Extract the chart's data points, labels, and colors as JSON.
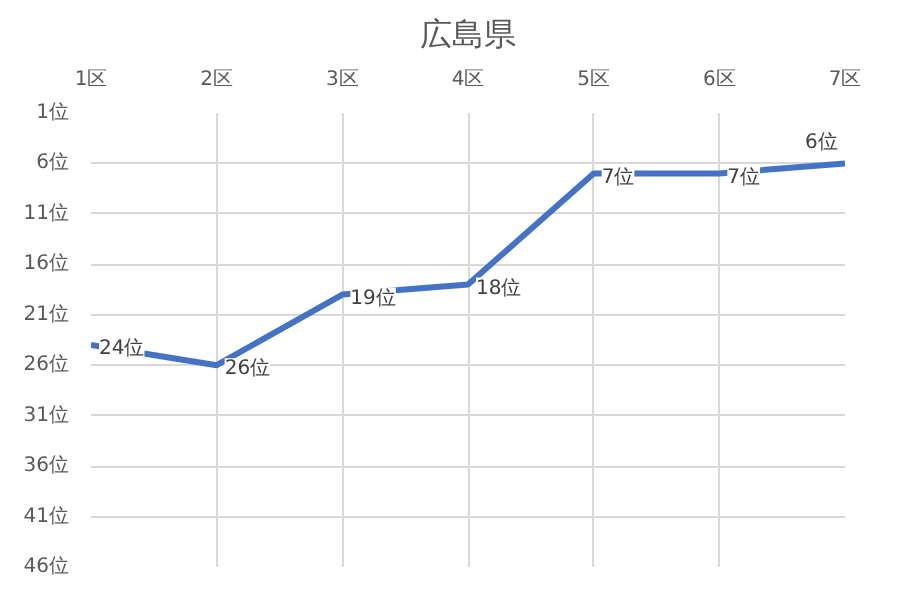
{
  "chart_data": {
    "type": "line",
    "title": "広島県",
    "categories": [
      "1区",
      "2区",
      "3区",
      "4区",
      "5区",
      "6区",
      "7区"
    ],
    "series": [
      {
        "color": "#4472c4",
        "values": [
          24,
          26,
          19,
          18,
          7,
          7,
          6
        ],
        "value_labels": [
          "24位",
          "26位",
          "19位",
          "18位",
          "7位",
          "7位",
          "6位"
        ]
      }
    ],
    "ylim": [
      46,
      1
    ],
    "yticks": [
      {
        "value": 1,
        "label": "1位"
      },
      {
        "value": 6,
        "label": "6位"
      },
      {
        "value": 11,
        "label": "11位"
      },
      {
        "value": 16,
        "label": "16位"
      },
      {
        "value": 21,
        "label": "21位"
      },
      {
        "value": 26,
        "label": "26位"
      },
      {
        "value": 31,
        "label": "31位"
      },
      {
        "value": 36,
        "label": "36位"
      },
      {
        "value": 41,
        "label": "41位"
      },
      {
        "value": 46,
        "label": "46位"
      }
    ],
    "grid": true
  }
}
